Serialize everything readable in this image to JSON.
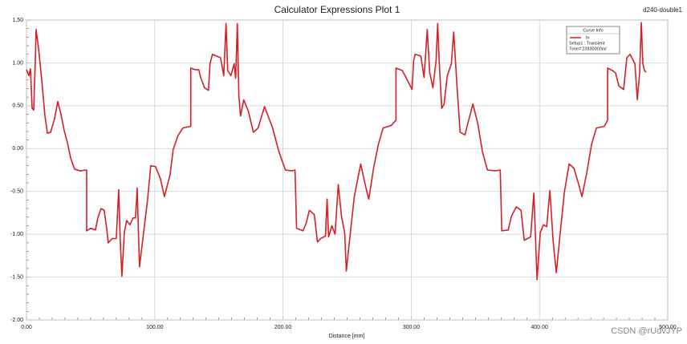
{
  "chart_data": {
    "type": "line",
    "title": "Calculator Expressions Plot 1",
    "project_label": "d240-double1",
    "x_label": "Distance [mm]",
    "watermark": "CSDN @rUdvJYP",
    "legend": {
      "heading": "Curve Info",
      "lines": [
        "Setup1 : Transient",
        "Time='22830000ns'"
      ]
    },
    "legend_position": "top-right",
    "grid": true,
    "xlim": [
      0,
      500
    ],
    "ylim": [
      -2,
      1.5
    ],
    "xticks": [
      {
        "value": 0,
        "label": "0.00"
      },
      {
        "value": 100,
        "label": "100.00"
      },
      {
        "value": 200,
        "label": "200.00"
      },
      {
        "value": 300,
        "label": "300.00"
      },
      {
        "value": 400,
        "label": "400.00"
      },
      {
        "value": 500,
        "label": "500.00"
      }
    ],
    "yticks": [
      {
        "value": 1.5,
        "label": "1.50"
      },
      {
        "value": 1,
        "label": "1.00"
      },
      {
        "value": 0.5,
        "label": "0.50"
      },
      {
        "value": 0,
        "label": "0.00"
      },
      {
        "value": -0.5,
        "label": "-0.50"
      },
      {
        "value": -1,
        "label": "-1.00"
      },
      {
        "value": -1.5,
        "label": "-1.50"
      },
      {
        "value": -2,
        "label": "-2.00"
      }
    ],
    "series": [
      {
        "name": "tx",
        "color": "#d42027",
        "x": [
          0,
          1.9,
          3.1,
          4.4,
          5.6,
          6.9,
          7.5,
          9.4,
          11.9,
          14.4,
          16.3,
          18.8,
          21.9,
          24.4,
          26.9,
          29.4,
          31.9,
          34.4,
          37.5,
          41.9,
          46.9,
          46.9,
          50,
          53.8,
          55.6,
          58.1,
          60.6,
          62.5,
          63.8,
          66.9,
          70,
          71.9,
          73.1,
          74.4,
          76.3,
          78.1,
          80.6,
          83.1,
          85,
          86.3,
          88.1,
          90.6,
          94.4,
          96.9,
          100.6,
          104.4,
          107.5,
          111.9,
          114.4,
          118.1,
          121.9,
          128.1,
          128.1,
          131.9,
          134.4,
          135.6,
          138.8,
          141.9,
          143.1,
          145,
          151.3,
          153.8,
          155.6,
          156.9,
          159.4,
          161.9,
          163.1,
          164.4,
          165.6,
          166.9,
          169.4,
          173.1,
          176.9,
          180.6,
          185.6,
          191.9,
          196.9,
          201.9,
          206.9,
          209.4,
          210.6,
          215.6,
          218.1,
          220.6,
          224.4,
          226.9,
          229.4,
          233.1,
          234.4,
          235.6,
          238.1,
          240.6,
          243.1,
          245.6,
          248.1,
          249.4,
          251.9,
          255.6,
          258.1,
          260.6,
          264.4,
          266.9,
          270.6,
          274.4,
          278.1,
          284.4,
          288.1,
          288.1,
          293.1,
          296.9,
          300.6,
          301.9,
          303.1,
          307.5,
          310,
          312.5,
          314.4,
          316.9,
          319.4,
          320.6,
          321.9,
          323.8,
          325.6,
          328.1,
          331.3,
          333.1,
          335.6,
          338.1,
          341.9,
          344.4,
          348.1,
          351.9,
          355.6,
          359.4,
          365.6,
          369.4,
          370.6,
          375.6,
          378.1,
          381.9,
          385.6,
          388.1,
          390.6,
          393.1,
          395.6,
          398.1,
          400.6,
          403.1,
          405.6,
          408.1,
          410.6,
          413.1,
          415.6,
          419.4,
          423.1,
          426.9,
          430.6,
          433.1,
          436.9,
          440.6,
          444.4,
          450.6,
          453.1,
          453.1,
          456.9,
          459.4,
          461.9,
          465.6,
          468.1,
          470.6,
          474.4,
          476.3,
          478.1,
          479.4,
          480.6,
          481.9,
          483.1
        ],
        "values": [
          0.92,
          0.85,
          0.93,
          0.47,
          0.45,
          1.03,
          1.39,
          1.17,
          0.8,
          0.38,
          0.18,
          0.19,
          0.35,
          0.55,
          0.4,
          0.21,
          0.07,
          -0.11,
          -0.24,
          -0.26,
          -0.25,
          -0.96,
          -0.93,
          -0.95,
          -0.81,
          -0.7,
          -0.72,
          -0.93,
          -1.1,
          -1.05,
          -1.05,
          -0.48,
          -1.07,
          -1.49,
          -0.98,
          -0.84,
          -0.89,
          -0.81,
          -0.81,
          -0.46,
          -1.38,
          -1.07,
          -0.6,
          -0.2,
          -0.21,
          -0.35,
          -0.56,
          -0.31,
          -0.01,
          0.15,
          0.24,
          0.26,
          0.94,
          0.92,
          0.92,
          0.84,
          0.71,
          0.68,
          0.99,
          1.1,
          1.06,
          0.85,
          1.46,
          0.91,
          0.85,
          0.99,
          0.82,
          1.46,
          0.61,
          0.38,
          0.57,
          0.43,
          0.19,
          0.24,
          0.49,
          0.24,
          -0.04,
          -0.25,
          -0.26,
          -0.25,
          -0.93,
          -0.96,
          -0.87,
          -0.72,
          -0.77,
          -1.09,
          -1.05,
          -1.02,
          -0.59,
          -1.03,
          -0.9,
          -1.0,
          -0.42,
          -0.79,
          -0.98,
          -1.43,
          -1.07,
          -0.56,
          -0.37,
          -0.18,
          -0.44,
          -0.59,
          -0.23,
          0.05,
          0.24,
          0.27,
          0.33,
          0.94,
          0.91,
          0.8,
          0.69,
          1.03,
          1.1,
          1.08,
          0.83,
          1.39,
          0.89,
          0.71,
          1.03,
          1.46,
          0.99,
          0.47,
          0.52,
          0.85,
          0.99,
          1.36,
          0.75,
          0.19,
          0.16,
          0.31,
          0.52,
          0.29,
          -0.04,
          -0.25,
          -0.26,
          -0.25,
          -0.96,
          -0.95,
          -0.79,
          -0.68,
          -0.72,
          -1.07,
          -1.05,
          -1.03,
          -0.52,
          -1.53,
          -0.98,
          -0.89,
          -0.91,
          -0.49,
          -1.07,
          -1.45,
          -1.07,
          -0.51,
          -0.18,
          -0.23,
          -0.42,
          -0.56,
          -0.28,
          0.05,
          0.24,
          0.26,
          0.33,
          0.94,
          0.91,
          0.88,
          0.73,
          0.69,
          1.06,
          1.1,
          0.99,
          0.57,
          0.89,
          1.47,
          0.99,
          0.91,
          0.89
        ]
      }
    ]
  }
}
